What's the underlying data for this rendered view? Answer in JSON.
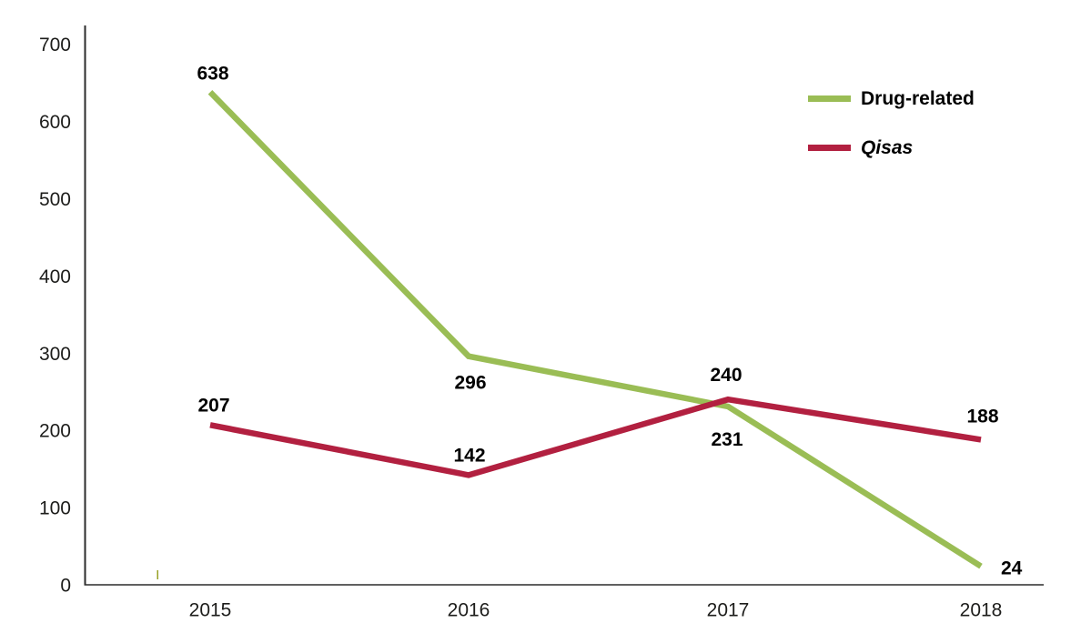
{
  "chart_data": {
    "type": "line",
    "title": "",
    "xlabel": "",
    "ylabel": "",
    "categories": [
      "2015",
      "2016",
      "2017",
      "2018"
    ],
    "series": [
      {
        "name": "Drug-related",
        "values": [
          638,
          296,
          231,
          24
        ],
        "color": "#9ABD55",
        "italic": false
      },
      {
        "name": "Qisas",
        "values": [
          207,
          142,
          240,
          188
        ],
        "color": "#B22040",
        "italic": true
      }
    ],
    "yticks": [
      0,
      100,
      200,
      300,
      400,
      500,
      600,
      700
    ],
    "ylim": [
      0,
      700
    ],
    "grid": false,
    "legend_position": "top-right",
    "data_labels_shown": true
  },
  "colors": {
    "axis": "#2b2b2b",
    "text": "#000000",
    "background": "#ffffff",
    "series_green": "#9ABD55",
    "series_red": "#B22040",
    "stray_mark": "#97A024"
  }
}
